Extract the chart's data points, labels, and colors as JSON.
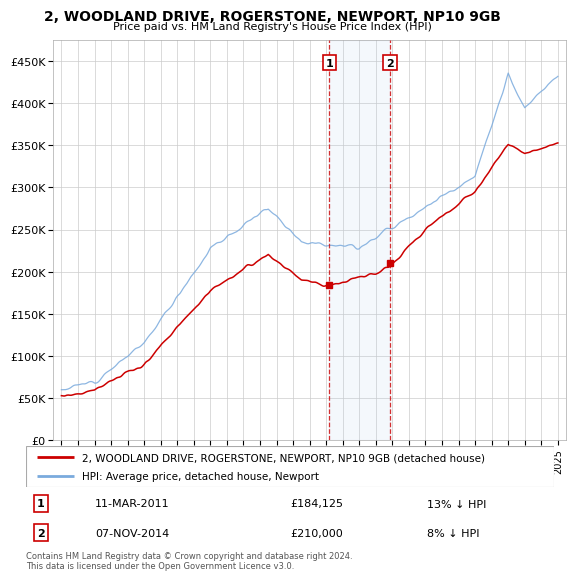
{
  "title": "2, WOODLAND DRIVE, ROGERSTONE, NEWPORT, NP10 9GB",
  "subtitle": "Price paid vs. HM Land Registry's House Price Index (HPI)",
  "legend_line1": "2, WOODLAND DRIVE, ROGERSTONE, NEWPORT, NP10 9GB (detached house)",
  "legend_line2": "HPI: Average price, detached house, Newport",
  "annotation1_date": "11-MAR-2011",
  "annotation1_price": "£184,125",
  "annotation1_hpi": "13% ↓ HPI",
  "annotation2_date": "07-NOV-2014",
  "annotation2_price": "£210,000",
  "annotation2_hpi": "8% ↓ HPI",
  "footnote": "Contains HM Land Registry data © Crown copyright and database right 2024.\nThis data is licensed under the Open Government Licence v3.0.",
  "hpi_color": "#7aaadd",
  "price_color": "#cc0000",
  "marker1_x": 2011.19,
  "marker1_y": 184125,
  "marker2_x": 2014.85,
  "marker2_y": 210000,
  "ylim": [
    0,
    475000
  ],
  "xlim_start": 1994.5,
  "xlim_end": 2025.5,
  "fig_width": 6.0,
  "fig_height": 5.6
}
